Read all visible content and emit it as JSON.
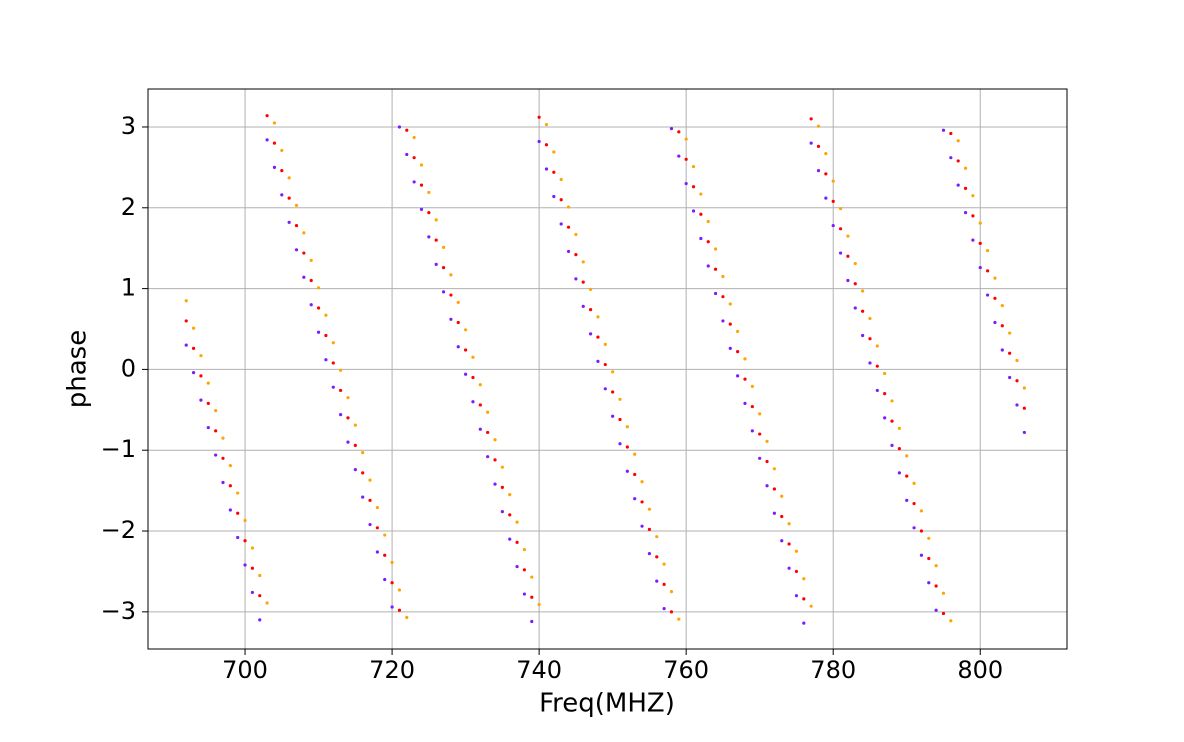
{
  "chart_data": {
    "type": "scatter",
    "xlabel": "Freq(MHZ)",
    "ylabel": "phase",
    "xlim": [
      686.8,
      811.8
    ],
    "ylim": [
      -3.46,
      3.47
    ],
    "xticks": [
      700,
      720,
      740,
      760,
      780,
      800
    ],
    "yticks": [
      {
        "value": -3,
        "label": "−3"
      },
      {
        "value": -2,
        "label": "−2"
      },
      {
        "value": -1,
        "label": "−1"
      },
      0,
      1,
      2,
      3
    ],
    "grid": true,
    "x": [
      692,
      693,
      694,
      695,
      696,
      697,
      698,
      699,
      700,
      701,
      702,
      703,
      704,
      705,
      706,
      707,
      708,
      709,
      710,
      711,
      712,
      713,
      714,
      715,
      716,
      717,
      718,
      719,
      720,
      721,
      722,
      723,
      724,
      725,
      726,
      727,
      728,
      729,
      730,
      731,
      732,
      733,
      734,
      735,
      736,
      737,
      738,
      739,
      740,
      741,
      742,
      743,
      744,
      745,
      746,
      747,
      748,
      749,
      750,
      751,
      752,
      753,
      754,
      755,
      756,
      757,
      758,
      759,
      760,
      761,
      762,
      763,
      764,
      765,
      766,
      767,
      768,
      769,
      770,
      771,
      772,
      773,
      774,
      775,
      776,
      777,
      778,
      779,
      780,
      781,
      782,
      783,
      784,
      785,
      786,
      787,
      788,
      789,
      790,
      791,
      792,
      793,
      794,
      795,
      796,
      797,
      798,
      799,
      800,
      801,
      802,
      803,
      804,
      805,
      806
    ],
    "series": [
      {
        "color": "#ffa500",
        "values": [
          0.85,
          0.51,
          0.17,
          -0.17,
          -0.51,
          -0.85,
          -1.19,
          -1.53,
          -1.87,
          -2.21,
          -2.55,
          -2.89,
          3.05,
          2.71,
          2.37,
          2.03,
          1.69,
          1.35,
          1.01,
          0.67,
          0.33,
          -0.01,
          -0.35,
          -0.69,
          -1.03,
          -1.37,
          -1.71,
          -2.05,
          -2.39,
          -2.73,
          -3.07,
          2.87,
          2.53,
          2.19,
          1.85,
          1.51,
          1.17,
          0.83,
          0.49,
          0.15,
          -0.19,
          -0.53,
          -0.87,
          -1.21,
          -1.55,
          -1.89,
          -2.23,
          -2.57,
          -2.91,
          3.03,
          2.69,
          2.35,
          2.01,
          1.67,
          1.33,
          0.99,
          0.65,
          0.31,
          -0.03,
          -0.37,
          -0.71,
          -1.05,
          -1.39,
          -1.73,
          -2.07,
          -2.41,
          -2.75,
          -3.09,
          2.85,
          2.51,
          2.17,
          1.83,
          1.49,
          1.15,
          0.81,
          0.47,
          0.13,
          -0.21,
          -0.55,
          -0.89,
          -1.23,
          -1.57,
          -1.91,
          -2.25,
          -2.59,
          -2.93,
          3.01,
          2.67,
          2.33,
          1.99,
          1.65,
          1.31,
          0.97,
          0.63,
          0.29,
          -0.05,
          -0.39,
          -0.73,
          -1.07,
          -1.41,
          -1.75,
          -2.09,
          -2.43,
          -2.77,
          -3.11,
          2.83,
          2.49,
          2.15,
          1.81,
          1.47,
          1.13,
          0.79,
          0.45,
          0.11,
          -0.23
        ]
      },
      {
        "color": "#ff0000",
        "values": [
          0.6,
          0.26,
          -0.08,
          -0.42,
          -0.76,
          -1.1,
          -1.44,
          -1.78,
          -2.12,
          -2.46,
          -2.8,
          3.14,
          2.8,
          2.46,
          2.12,
          1.78,
          1.44,
          1.1,
          0.76,
          0.42,
          0.08,
          -0.26,
          -0.6,
          -0.94,
          -1.28,
          -1.62,
          -1.96,
          -2.3,
          -2.64,
          -2.98,
          2.96,
          2.62,
          2.28,
          1.94,
          1.6,
          1.26,
          0.92,
          0.58,
          0.24,
          -0.1,
          -0.44,
          -0.78,
          -1.12,
          -1.46,
          -1.8,
          -2.14,
          -2.48,
          -2.82,
          3.12,
          2.78,
          2.44,
          2.1,
          1.76,
          1.42,
          1.08,
          0.74,
          0.4,
          0.06,
          -0.28,
          -0.62,
          -0.96,
          -1.3,
          -1.64,
          -1.98,
          -2.32,
          -2.66,
          -3.0,
          2.94,
          2.6,
          2.26,
          1.92,
          1.58,
          1.24,
          0.9,
          0.56,
          0.22,
          -0.12,
          -0.46,
          -0.8,
          -1.14,
          -1.48,
          -1.82,
          -2.16,
          -2.5,
          -2.84,
          3.1,
          2.76,
          2.42,
          2.08,
          1.74,
          1.4,
          1.06,
          0.72,
          0.38,
          0.04,
          -0.3,
          -0.64,
          -0.98,
          -1.32,
          -1.66,
          -2.0,
          -2.34,
          -2.68,
          -3.02,
          2.92,
          2.58,
          2.24,
          1.9,
          1.56,
          1.22,
          0.88,
          0.54,
          0.2,
          -0.14,
          -0.48
        ]
      },
      {
        "color": "#7a1cff",
        "values": [
          0.3,
          -0.04,
          -0.38,
          -0.72,
          -1.06,
          -1.4,
          -1.74,
          -2.08,
          -2.42,
          -2.76,
          -3.1,
          2.84,
          2.5,
          2.16,
          1.82,
          1.48,
          1.14,
          0.8,
          0.46,
          0.12,
          -0.22,
          -0.56,
          -0.9,
          -1.24,
          -1.58,
          -1.92,
          -2.26,
          -2.6,
          -2.94,
          3.0,
          2.66,
          2.32,
          1.98,
          1.64,
          1.3,
          0.96,
          0.62,
          0.28,
          -0.06,
          -0.4,
          -0.74,
          -1.08,
          -1.42,
          -1.76,
          -2.1,
          -2.44,
          -2.78,
          -3.12,
          2.82,
          2.48,
          2.14,
          1.8,
          1.46,
          1.12,
          0.78,
          0.44,
          0.1,
          -0.24,
          -0.58,
          -0.92,
          -1.26,
          -1.6,
          -1.94,
          -2.28,
          -2.62,
          -2.96,
          2.98,
          2.64,
          2.3,
          1.96,
          1.62,
          1.28,
          0.94,
          0.6,
          0.26,
          -0.08,
          -0.42,
          -0.76,
          -1.1,
          -1.44,
          -1.78,
          -2.12,
          -2.46,
          -2.8,
          -3.14,
          2.8,
          2.46,
          2.12,
          1.78,
          1.44,
          1.1,
          0.76,
          0.42,
          0.08,
          -0.26,
          -0.6,
          -0.94,
          -1.28,
          -1.62,
          -1.96,
          -2.3,
          -2.64,
          -2.98,
          2.96,
          2.62,
          2.28,
          1.94,
          1.6,
          1.26,
          0.92,
          0.58,
          0.24,
          -0.1,
          -0.44,
          -0.78
        ]
      }
    ]
  }
}
